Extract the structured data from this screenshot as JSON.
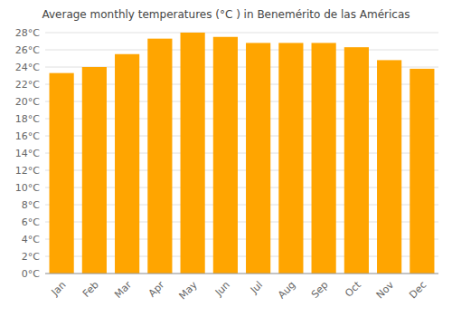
{
  "chart_data": {
    "type": "bar",
    "title": "Average monthly temperatures (°C ) in Benemérito de las Américas",
    "categories": [
      "Jan",
      "Feb",
      "Mar",
      "Apr",
      "May",
      "Jun",
      "Jul",
      "Aug",
      "Sep",
      "Oct",
      "Nov",
      "Dec"
    ],
    "values": [
      23.3,
      24.0,
      25.5,
      27.3,
      28.0,
      27.5,
      26.8,
      26.8,
      26.8,
      26.3,
      24.8,
      23.8
    ],
    "color": "#FFA500",
    "ylim": [
      0,
      28
    ],
    "yticks": [
      {
        "value": 0,
        "label": "0°C"
      },
      {
        "value": 2,
        "label": "2°C"
      },
      {
        "value": 4,
        "label": "4°C"
      },
      {
        "value": 6,
        "label": "6°C"
      },
      {
        "value": 8,
        "label": "8°C"
      },
      {
        "value": 10,
        "label": "10°C"
      },
      {
        "value": 12,
        "label": "12°C"
      },
      {
        "value": 14,
        "label": "14°C"
      },
      {
        "value": 16,
        "label": "16°C"
      },
      {
        "value": 18,
        "label": "18°C"
      },
      {
        "value": 20,
        "label": "20°C"
      },
      {
        "value": 22,
        "label": "22°C"
      },
      {
        "value": 24,
        "label": "24°C"
      },
      {
        "value": 26,
        "label": "26°C"
      },
      {
        "value": 28,
        "label": "28°C"
      }
    ],
    "grid": true
  }
}
